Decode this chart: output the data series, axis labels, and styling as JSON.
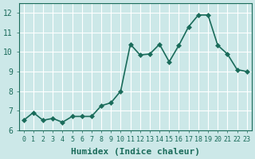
{
  "x": [
    0,
    1,
    2,
    3,
    4,
    5,
    6,
    7,
    8,
    9,
    10,
    11,
    12,
    13,
    14,
    15,
    16,
    17,
    18,
    19,
    20,
    21,
    22,
    23
  ],
  "y": [
    6.5,
    6.9,
    6.5,
    6.6,
    6.4,
    6.7,
    6.7,
    6.7,
    7.25,
    7.4,
    8.0,
    10.4,
    9.85,
    9.9,
    10.4,
    9.5,
    10.35,
    11.3,
    11.9,
    11.9,
    10.35,
    9.9,
    9.1,
    9.0
  ],
  "line_color": "#1a6b5a",
  "marker_color": "#1a6b5a",
  "bg_color": "#cce8e8",
  "grid_color": "#ffffff",
  "xlabel": "Humidex (Indice chaleur)",
  "ylim_min": 6,
  "ylim_max": 12.5,
  "xlim_min": -0.5,
  "xlim_max": 23.5,
  "yticks": [
    6,
    7,
    8,
    9,
    10,
    11,
    12
  ],
  "xticks": [
    0,
    1,
    2,
    3,
    4,
    5,
    6,
    7,
    8,
    9,
    10,
    11,
    12,
    13,
    14,
    15,
    16,
    17,
    18,
    19,
    20,
    21,
    22,
    23
  ],
  "xlabel_fontsize": 8,
  "tick_fontsize": 6,
  "line_width": 1.2,
  "marker_size": 3
}
